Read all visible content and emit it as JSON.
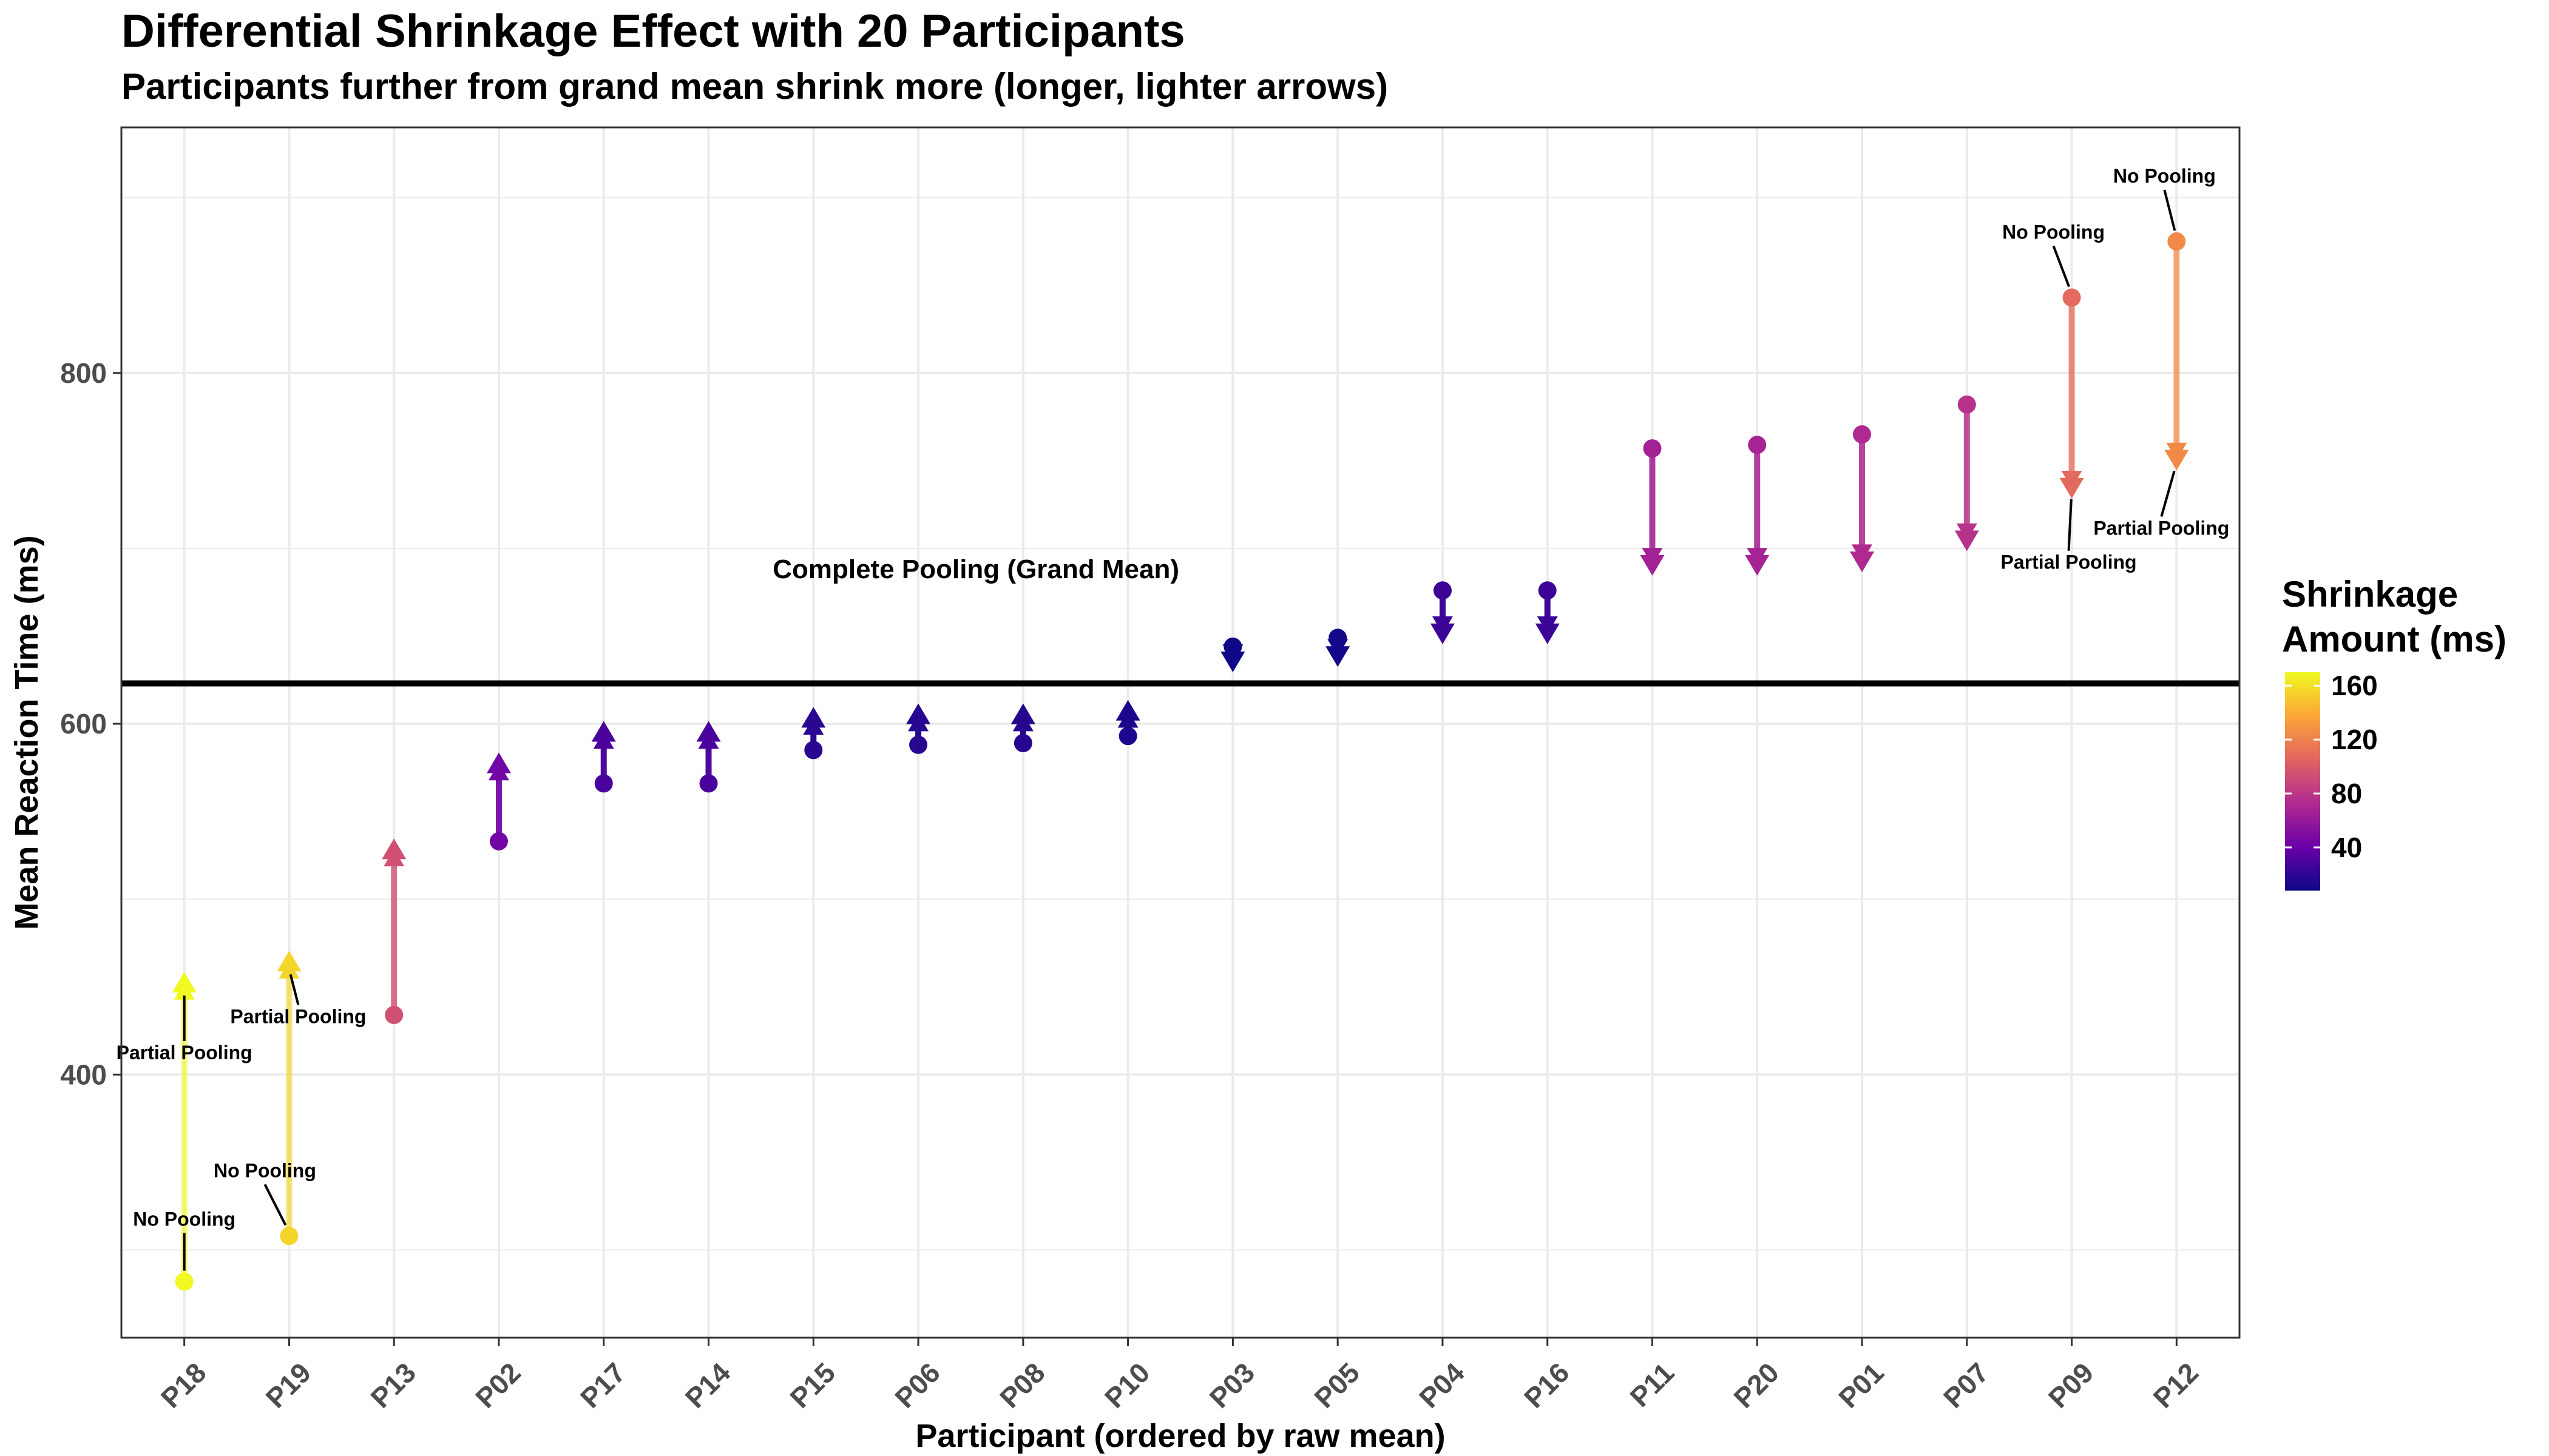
{
  "chart_data": {
    "type": "dumbbell",
    "title": "Differential Shrinkage Effect with 20 Participants",
    "subtitle": "Participants further from grand mean shrink more (longer, lighter arrows)",
    "xlabel": "Participant (ordered by raw mean)",
    "ylabel": "Mean Reaction Time (ms)",
    "ylim": [
      250,
      940
    ],
    "yticks": [
      400,
      600,
      800
    ],
    "grid": true,
    "grand_mean": 623,
    "grand_mean_label": "Complete Pooling (Grand Mean)",
    "participants": [
      "P18",
      "P19",
      "P13",
      "P02",
      "P17",
      "P14",
      "P15",
      "P06",
      "P08",
      "P10",
      "P03",
      "P05",
      "P04",
      "P16",
      "P11",
      "P20",
      "P01",
      "P07",
      "P09",
      "P12"
    ],
    "no_pooling": [
      282,
      308,
      434,
      533,
      566,
      566,
      585,
      588,
      589,
      593,
      644,
      649,
      676,
      676,
      757,
      759,
      765,
      782,
      843,
      875
    ],
    "partial_pooling": [
      452,
      464,
      528,
      577,
      595,
      595,
      603,
      605,
      605,
      607,
      636,
      639,
      652,
      652,
      691,
      691,
      693,
      705,
      735,
      751
    ],
    "shrinkage_scale": {
      "title": "Shrinkage Amount (ms)",
      "ticks": [
        40,
        80,
        120,
        160
      ],
      "min": 8,
      "max": 170,
      "colors": [
        "#0d0887",
        "#6a00a8",
        "#b12a90",
        "#e16462",
        "#fca636",
        "#f0f921"
      ],
      "position": "right"
    },
    "annotations": [
      {
        "participant": "P18",
        "label": "No Pooling",
        "at": "no_pooling"
      },
      {
        "participant": "P18",
        "label": "Partial Pooling",
        "at": "partial_pooling"
      },
      {
        "participant": "P19",
        "label": "No Pooling",
        "at": "no_pooling"
      },
      {
        "participant": "P19",
        "label": "Partial Pooling",
        "at": "partial_pooling"
      },
      {
        "participant": "P09",
        "label": "No Pooling",
        "at": "no_pooling"
      },
      {
        "participant": "P09",
        "label": "Partial Pooling",
        "at": "partial_pooling"
      },
      {
        "participant": "P12",
        "label": "No Pooling",
        "at": "no_pooling"
      },
      {
        "participant": "P12",
        "label": "Partial Pooling",
        "at": "partial_pooling"
      }
    ]
  }
}
